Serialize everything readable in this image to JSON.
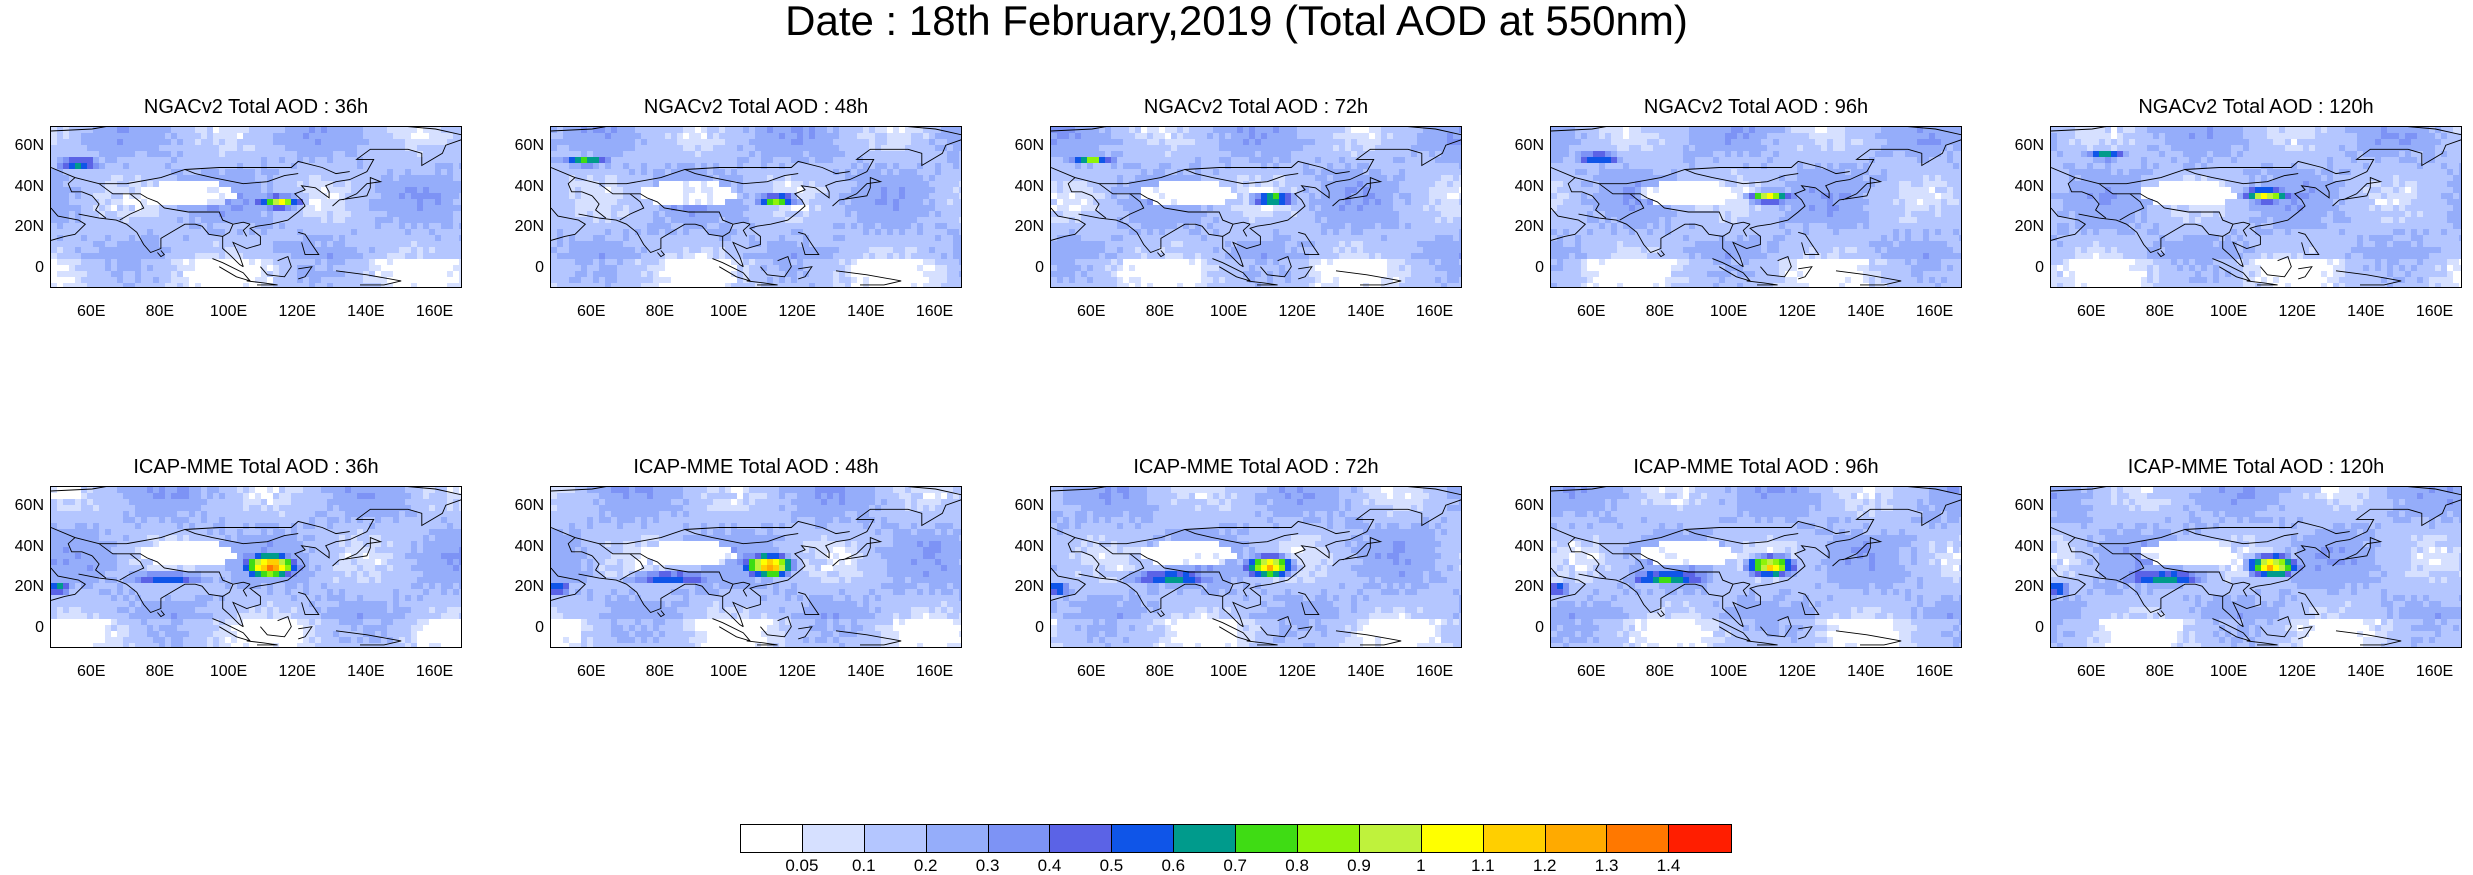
{
  "title": "Date : 18th February,2019 (Total AOD at 550nm)",
  "panels": [
    {
      "title": "NGACv2 Total AOD : 36h",
      "model": "NGACv2",
      "lead": "36h"
    },
    {
      "title": "NGACv2 Total AOD : 48h",
      "model": "NGACv2",
      "lead": "48h"
    },
    {
      "title": "NGACv2 Total AOD : 72h",
      "model": "NGACv2",
      "lead": "72h"
    },
    {
      "title": "NGACv2 Total AOD : 96h",
      "model": "NGACv2",
      "lead": "96h"
    },
    {
      "title": "NGACv2 Total AOD : 120h",
      "model": "NGACv2",
      "lead": "120h"
    },
    {
      "title": "ICAP-MME Total AOD : 36h",
      "model": "ICAP-MME",
      "lead": "36h"
    },
    {
      "title": "ICAP-MME Total AOD : 48h",
      "model": "ICAP-MME",
      "lead": "48h"
    },
    {
      "title": "ICAP-MME Total AOD : 72h",
      "model": "ICAP-MME",
      "lead": "72h"
    },
    {
      "title": "ICAP-MME Total AOD : 96h",
      "model": "ICAP-MME",
      "lead": "96h"
    },
    {
      "title": "ICAP-MME Total AOD : 120h",
      "model": "ICAP-MME",
      "lead": "120h"
    }
  ],
  "axes": {
    "y_ticks": [
      "60N",
      "40N",
      "20N",
      "0"
    ],
    "y_values": [
      60,
      40,
      20,
      0
    ],
    "x_ticks": [
      "60E",
      "80E",
      "100E",
      "120E",
      "140E",
      "160E"
    ],
    "x_values": [
      60,
      80,
      100,
      120,
      140,
      160
    ],
    "lon_range": [
      48,
      168
    ],
    "lat_range": [
      -10,
      70
    ]
  },
  "colorbar": {
    "labels": [
      "0.05",
      "0.1",
      "0.2",
      "0.3",
      "0.4",
      "0.5",
      "0.6",
      "0.7",
      "0.8",
      "0.9",
      "1",
      "1.1",
      "1.2",
      "1.3",
      "1.4"
    ],
    "colors": [
      "#ffffff",
      "#d6e0ff",
      "#b4c6ff",
      "#95adfa",
      "#7d93f5",
      "#5b63e6",
      "#0f55e8",
      "#009b8c",
      "#3fdc14",
      "#8ff30a",
      "#bff23c",
      "#ffff00",
      "#ffcf00",
      "#ffaa00",
      "#ff7800",
      "#ff1e00"
    ]
  }
}
